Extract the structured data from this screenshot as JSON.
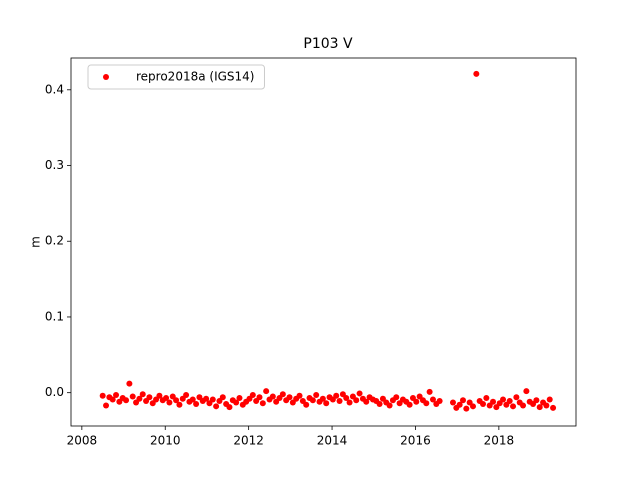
{
  "chart_data": {
    "type": "scatter",
    "title": "P103 V",
    "ylabel": "m",
    "xlim": [
      2007.74,
      2019.85
    ],
    "ylim": [
      -0.044,
      0.442
    ],
    "xticks": [
      2008,
      2010,
      2012,
      2014,
      2016,
      2018
    ],
    "yticks": [
      {
        "value": 0,
        "label": "0.0"
      },
      0.1,
      0.2,
      0.3,
      0.4
    ],
    "legend": "upper left",
    "series": [
      {
        "name": "repro2018a (IGS14)",
        "color": "#ff0000",
        "x": [
          2008.5,
          2008.58,
          2008.66,
          2008.74,
          2008.82,
          2008.9,
          2008.98,
          2009.06,
          2009.14,
          2009.22,
          2009.3,
          2009.38,
          2009.46,
          2009.54,
          2009.62,
          2009.7,
          2009.78,
          2009.86,
          2009.94,
          2010.02,
          2010.1,
          2010.18,
          2010.26,
          2010.34,
          2010.42,
          2010.5,
          2010.58,
          2010.66,
          2010.74,
          2010.82,
          2010.9,
          2010.98,
          2011.06,
          2011.14,
          2011.22,
          2011.3,
          2011.38,
          2011.46,
          2011.54,
          2011.62,
          2011.7,
          2011.78,
          2011.86,
          2011.94,
          2012.02,
          2012.1,
          2012.18,
          2012.26,
          2012.34,
          2012.42,
          2012.5,
          2012.58,
          2012.66,
          2012.74,
          2012.82,
          2012.9,
          2012.98,
          2013.06,
          2013.14,
          2013.22,
          2013.3,
          2013.38,
          2013.46,
          2013.54,
          2013.62,
          2013.7,
          2013.78,
          2013.86,
          2013.94,
          2014.02,
          2014.1,
          2014.18,
          2014.26,
          2014.34,
          2014.42,
          2014.5,
          2014.58,
          2014.66,
          2014.74,
          2014.82,
          2014.9,
          2014.98,
          2015.06,
          2015.14,
          2015.22,
          2015.3,
          2015.38,
          2015.46,
          2015.54,
          2015.62,
          2015.7,
          2015.78,
          2015.86,
          2015.94,
          2016.02,
          2016.1,
          2016.18,
          2016.26,
          2016.34,
          2016.42,
          2016.5,
          2016.58,
          2016.9,
          2016.98,
          2017.06,
          2017.14,
          2017.22,
          2017.3,
          2017.38,
          2017.46,
          2017.54,
          2017.62,
          2017.7,
          2017.78,
          2017.86,
          2017.94,
          2018.02,
          2018.1,
          2018.18,
          2018.26,
          2018.34,
          2018.42,
          2018.5,
          2018.58,
          2018.66,
          2018.74,
          2018.82,
          2018.9,
          2018.98,
          2019.06,
          2019.14,
          2019.22,
          2019.3
        ],
        "values": [
          -0.004,
          -0.017,
          -0.006,
          -0.009,
          -0.003,
          -0.012,
          -0.007,
          -0.01,
          0.012,
          -0.005,
          -0.013,
          -0.008,
          -0.002,
          -0.011,
          -0.006,
          -0.014,
          -0.009,
          -0.004,
          -0.01,
          -0.007,
          -0.013,
          -0.005,
          -0.01,
          -0.016,
          -0.008,
          -0.003,
          -0.012,
          -0.009,
          -0.015,
          -0.006,
          -0.011,
          -0.008,
          -0.014,
          -0.009,
          -0.018,
          -0.011,
          -0.006,
          -0.015,
          -0.019,
          -0.01,
          -0.013,
          -0.007,
          -0.016,
          -0.012,
          -0.008,
          -0.003,
          -0.011,
          -0.006,
          -0.014,
          0.002,
          -0.009,
          -0.005,
          -0.012,
          -0.007,
          -0.002,
          -0.01,
          -0.006,
          -0.013,
          -0.008,
          -0.004,
          -0.011,
          -0.016,
          -0.007,
          -0.01,
          -0.003,
          -0.012,
          -0.008,
          -0.014,
          -0.006,
          -0.009,
          -0.004,
          -0.011,
          -0.002,
          -0.007,
          -0.013,
          -0.005,
          -0.01,
          -0.001,
          -0.008,
          -0.012,
          -0.006,
          -0.009,
          -0.011,
          -0.015,
          -0.008,
          -0.013,
          -0.017,
          -0.01,
          -0.006,
          -0.014,
          -0.009,
          -0.012,
          -0.016,
          -0.007,
          -0.012,
          -0.005,
          -0.01,
          -0.014,
          0.001,
          -0.009,
          -0.015,
          -0.011,
          -0.013,
          -0.02,
          -0.016,
          -0.01,
          -0.021,
          -0.013,
          -0.018,
          0.421,
          -0.011,
          -0.015,
          -0.007,
          -0.017,
          -0.012,
          -0.019,
          -0.014,
          -0.009,
          -0.016,
          -0.011,
          -0.018,
          -0.006,
          -0.013,
          -0.017,
          0.002,
          -0.012,
          -0.015,
          -0.01,
          -0.019,
          -0.013,
          -0.017,
          -0.009,
          -0.02
        ]
      }
    ]
  }
}
